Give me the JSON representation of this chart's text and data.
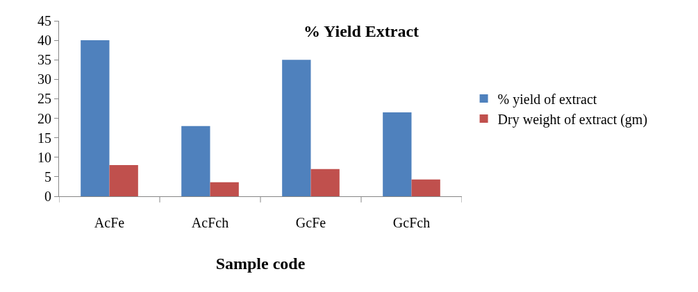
{
  "chart_data": {
    "type": "bar",
    "title": "% Yield Extract",
    "xlabel": "Sample code",
    "categories": [
      "AcFe",
      "AcFch",
      "GcFe",
      "GcFch"
    ],
    "series": [
      {
        "name": "% yield of extract",
        "color": "#4f81bd",
        "values": [
          40,
          18,
          35,
          21.5
        ]
      },
      {
        "name": "Dry weight of extract (gm)",
        "color": "#c0504d",
        "values": [
          8,
          3.6,
          7,
          4.3
        ]
      }
    ],
    "ylim": [
      0,
      45
    ],
    "yticks": [
      0,
      5,
      10,
      15,
      20,
      25,
      30,
      35,
      40,
      45
    ],
    "grid": false,
    "legend": "right"
  }
}
